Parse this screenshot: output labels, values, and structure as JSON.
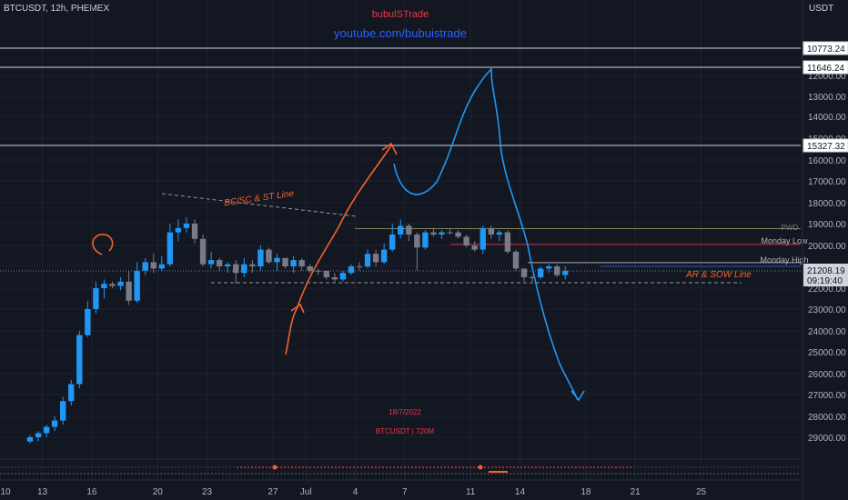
{
  "header": {
    "symbol_line": "BTCUSDT, 12h, PHEMEX",
    "brand": "bubulSTrade",
    "youtube": "youtube.com/bubuistrade",
    "axis_unit": "USDT"
  },
  "chart_data": {
    "type": "candlestick",
    "title": "BTCUSDT, 12h, PHEMEX",
    "y_axis": {
      "inverted": true,
      "ticks": [
        12000,
        13000,
        14000,
        15000,
        16000,
        17000,
        18000,
        19000,
        20000,
        21000,
        22000,
        23000,
        24000,
        25000,
        26000,
        27000,
        28000,
        29000
      ],
      "tick_labels": [
        "12000.00",
        "13000.00",
        "14000.00",
        "15000.00",
        "16000.00",
        "17000.00",
        "18000.00",
        "19000.00",
        "20000.00",
        "21000.00",
        "22000.00",
        "23000.00",
        "24000.00",
        "25000.00",
        "26000.00",
        "27000.00",
        "28000.00",
        "29000.00"
      ]
    },
    "x_axis": {
      "ticks": [
        {
          "label": "10",
          "idx": -4.5
        },
        {
          "label": "13",
          "idx": 1.5
        },
        {
          "label": "16",
          "idx": 7.5
        },
        {
          "label": "20",
          "idx": 15.5
        },
        {
          "label": "23",
          "idx": 21.5
        },
        {
          "label": "27",
          "idx": 29.5
        },
        {
          "label": "Jul",
          "idx": 33.5
        },
        {
          "label": "4",
          "idx": 39.5
        },
        {
          "label": "7",
          "idx": 45.5
        },
        {
          "label": "11",
          "idx": 53.5
        },
        {
          "label": "14",
          "idx": 59.5
        },
        {
          "label": "18",
          "idx": 67.5
        },
        {
          "label": "21",
          "idx": 73.5
        },
        {
          "label": "25",
          "idx": 81.5
        }
      ]
    },
    "horizontal_levels": [
      {
        "value": 10773.24,
        "label": "10773.24",
        "kind": "box"
      },
      {
        "value": 11646.24,
        "label": "11646.24",
        "kind": "box"
      },
      {
        "value": 15327.32,
        "label": "15327.32",
        "kind": "box"
      },
      {
        "value": 21208.19,
        "label": "21208.19",
        "kind": "current"
      }
    ],
    "countdown": "09:19:40",
    "annotations": [
      {
        "text": "BC/SC & ST Line",
        "color": "#f0642c"
      },
      {
        "text": "AR & SOW Line",
        "color": "#f0642c"
      },
      {
        "text": "PWD",
        "color": "#787b86"
      },
      {
        "text": "Monday Low",
        "color": "#b2b5be"
      },
      {
        "text": "Monday High",
        "color": "#b2b5be"
      },
      {
        "text": "18/7/2022",
        "color": "#f23645"
      },
      {
        "text": "BTCUSDT | 720M",
        "color": "#f23645"
      }
    ],
    "candles": [
      [
        29200,
        29000,
        29300,
        28900
      ],
      [
        29000,
        28800,
        29200,
        28700
      ],
      [
        28800,
        28500,
        29000,
        28400
      ],
      [
        28500,
        28200,
        28700,
        28000
      ],
      [
        28200,
        27300,
        28400,
        27100
      ],
      [
        27300,
        26500,
        27500,
        26300
      ],
      [
        26500,
        24200,
        26700,
        24000
      ],
      [
        24200,
        23000,
        24300,
        22600
      ],
      [
        23000,
        22000,
        23200,
        21700
      ],
      [
        22000,
        21800,
        22500,
        21600
      ],
      [
        21800,
        21900,
        22000,
        21700
      ],
      [
        21900,
        21700,
        22100,
        21500
      ],
      [
        21700,
        22600,
        22800,
        21200
      ],
      [
        22600,
        21200,
        22700,
        20800
      ],
      [
        21200,
        20800,
        21400,
        20600
      ],
      [
        20800,
        21100,
        21300,
        20400
      ],
      [
        21100,
        20900,
        21200,
        20500
      ],
      [
        20900,
        19400,
        21000,
        19000
      ],
      [
        19400,
        19200,
        19800,
        18800
      ],
      [
        19200,
        19000,
        19400,
        18700
      ],
      [
        19000,
        19700,
        19900,
        18800
      ],
      [
        19700,
        20900,
        21000,
        19500
      ],
      [
        20900,
        20700,
        21100,
        20300
      ],
      [
        20700,
        21000,
        21200,
        20600
      ],
      [
        21000,
        20900,
        21300,
        20800
      ],
      [
        20900,
        21300,
        21800,
        20700
      ],
      [
        21300,
        20900,
        21500,
        20600
      ],
      [
        20900,
        21000,
        21300,
        20700
      ],
      [
        21000,
        20200,
        21200,
        20000
      ],
      [
        20200,
        20800,
        20900,
        20100
      ],
      [
        20800,
        20600,
        21200,
        20400
      ],
      [
        20600,
        21000,
        21100,
        20700
      ],
      [
        21000,
        20700,
        21300,
        20500
      ],
      [
        20700,
        21000,
        21200,
        20600
      ],
      [
        21000,
        21200,
        21300,
        20900
      ],
      [
        21200,
        21200,
        21400,
        21100
      ],
      [
        21200,
        21500,
        21600,
        21200
      ],
      [
        21500,
        21600,
        21700,
        21300
      ],
      [
        21600,
        21300,
        21700,
        21200
      ],
      [
        21300,
        21000,
        21400,
        20900
      ],
      [
        21000,
        21000,
        21200,
        20800
      ],
      [
        21000,
        20400,
        21100,
        20200
      ],
      [
        20400,
        20800,
        21000,
        20200
      ],
      [
        20800,
        20200,
        20900,
        19900
      ],
      [
        20200,
        19500,
        20300,
        19000
      ],
      [
        19500,
        19100,
        19700,
        18800
      ],
      [
        19100,
        19500,
        19800,
        19000
      ],
      [
        19500,
        20100,
        21200,
        19400
      ],
      [
        20100,
        19400,
        20200,
        19300
      ],
      [
        19400,
        19500,
        19600,
        19200
      ],
      [
        19500,
        19400,
        19700,
        19300
      ],
      [
        19400,
        19400,
        19500,
        19200
      ],
      [
        19400,
        19600,
        19700,
        19300
      ],
      [
        19600,
        20000,
        20100,
        19500
      ],
      [
        20000,
        20200,
        20300,
        19800
      ],
      [
        20200,
        19200,
        20400,
        19100
      ],
      [
        19200,
        19500,
        19700,
        19100
      ],
      [
        19500,
        19400,
        19800,
        19300
      ],
      [
        19400,
        20300,
        20400,
        19300
      ],
      [
        20300,
        21100,
        21200,
        20200
      ],
      [
        21100,
        21500,
        21700,
        21200
      ],
      [
        21500,
        21500,
        21700,
        21400
      ],
      [
        21500,
        21100,
        21600,
        21000
      ],
      [
        21100,
        21000,
        21300,
        20900
      ],
      [
        21000,
        21400,
        21500,
        20900
      ],
      [
        21400,
        21200,
        21600,
        21000
      ]
    ]
  }
}
